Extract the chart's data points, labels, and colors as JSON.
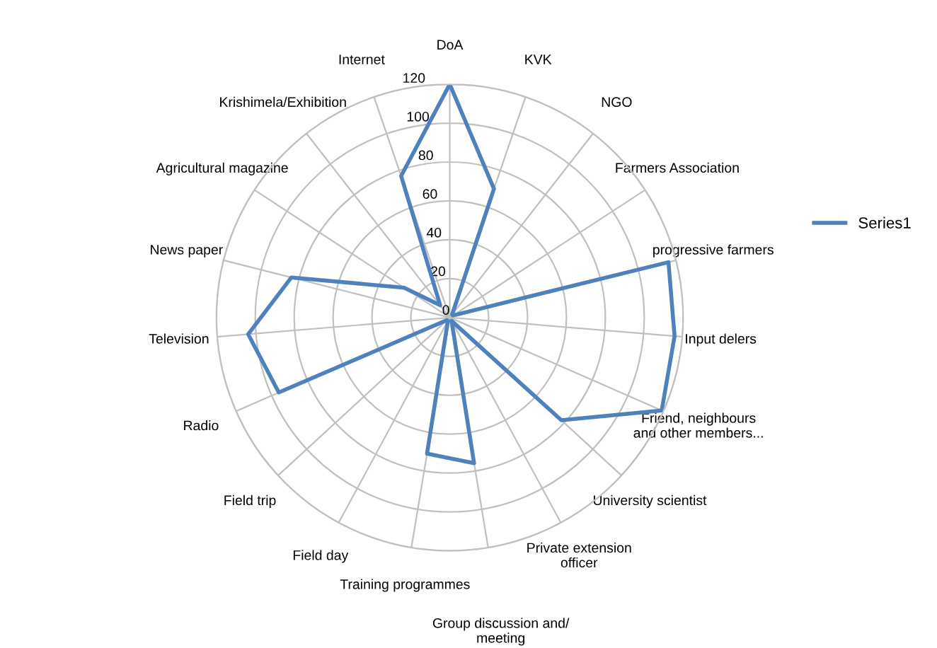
{
  "chart_data": {
    "type": "radar",
    "categories": [
      "DoA",
      "KVK",
      "NGO",
      "Farmers Association",
      "progressive farmers",
      "Input delers",
      "Friend, neighbours\nand other members...",
      "University scientist",
      "Private extension\nofficer",
      "Group discussion and/\nmeeting",
      "Training programmes",
      "Field day",
      "Field trip",
      "Radio",
      "Television",
      "News paper",
      "Agricultural magazine",
      "Krishimela/Exhibition",
      "Internet"
    ],
    "series": [
      {
        "name": "Series1",
        "color": "#4f81bd",
        "values": [
          120,
          70,
          2,
          2,
          116,
          116,
          119,
          78,
          2,
          76,
          71,
          2,
          2,
          96,
          104,
          84,
          28,
          8,
          77
        ]
      }
    ],
    "ylim": [
      0,
      120
    ],
    "yticks": [
      0,
      20,
      40,
      60,
      80,
      100,
      120
    ],
    "grid": true,
    "legend": "right",
    "marker": "none",
    "line_style": "solid"
  }
}
